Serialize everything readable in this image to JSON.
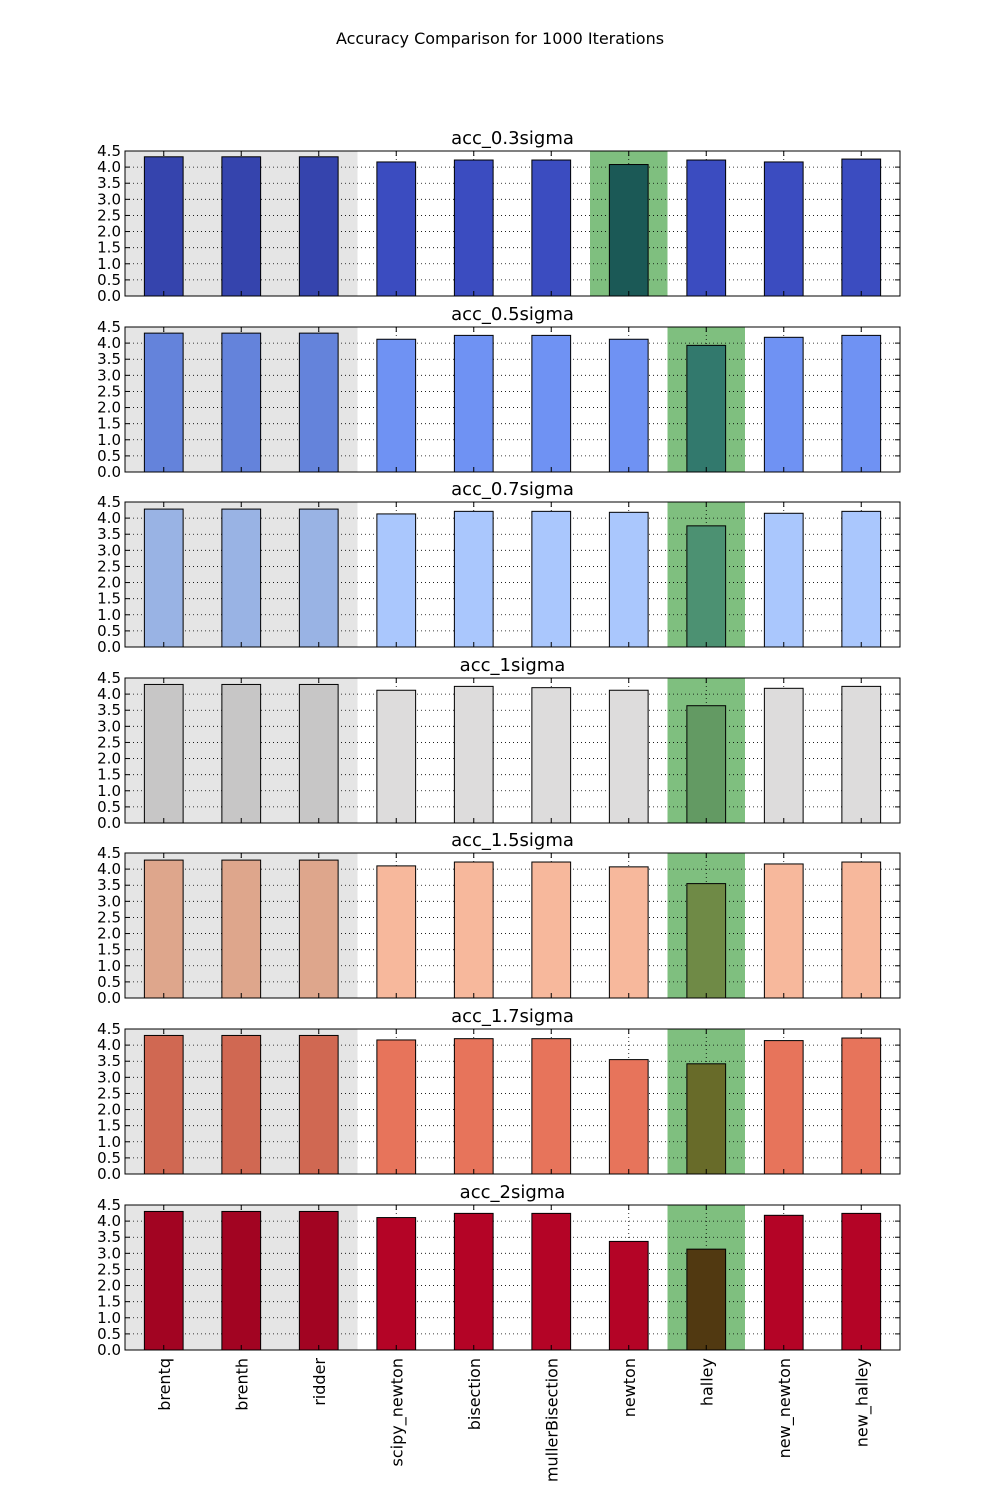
{
  "chart_data": {
    "type": "bar",
    "suptitle": "Accuracy Comparison for 1000 Iterations",
    "categories": [
      "brentq",
      "brenth",
      "ridder",
      "scipy_newton",
      "bisection",
      "mullerBisection",
      "newton",
      "halley",
      "new_newton",
      "new_halley"
    ],
    "ylim": [
      0,
      4.5
    ],
    "yticks": [
      "0.0",
      "0.5",
      "1.0",
      "1.5",
      "2.0",
      "2.5",
      "3.0",
      "3.5",
      "4.0",
      "4.5"
    ],
    "grid": true,
    "shaded_gray_categories": [
      "brentq",
      "brenth",
      "ridder"
    ],
    "gray_shade_color": "#e5e5e5",
    "highlight_color": "#7fbf7f",
    "panels": [
      {
        "title": "acc_0.3sigma",
        "bar_color": "#3b4cc0",
        "highlight_category": "newton",
        "values": [
          4.32,
          4.32,
          4.32,
          4.16,
          4.22,
          4.22,
          4.08,
          4.22,
          4.16,
          4.25
        ]
      },
      {
        "title": "acc_0.5sigma",
        "bar_color": "#6f92f3",
        "highlight_category": "halley",
        "values": [
          4.31,
          4.31,
          4.31,
          4.12,
          4.24,
          4.24,
          4.12,
          3.93,
          4.18,
          4.24
        ]
      },
      {
        "title": "acc_0.7sigma",
        "bar_color": "#aac7fd",
        "highlight_category": "halley",
        "values": [
          4.28,
          4.28,
          4.28,
          4.13,
          4.21,
          4.21,
          4.18,
          3.76,
          4.15,
          4.21
        ]
      },
      {
        "title": "acc_1sigma",
        "bar_color": "#dddcdc",
        "highlight_category": "halley",
        "values": [
          4.3,
          4.3,
          4.3,
          4.12,
          4.24,
          4.2,
          4.12,
          3.64,
          4.18,
          4.24
        ]
      },
      {
        "title": "acc_1.5sigma",
        "bar_color": "#f7b89c",
        "highlight_category": "halley",
        "values": [
          4.28,
          4.28,
          4.28,
          4.1,
          4.22,
          4.22,
          4.07,
          3.55,
          4.16,
          4.22
        ]
      },
      {
        "title": "acc_1.7sigma",
        "bar_color": "#e7745b",
        "highlight_category": "halley",
        "values": [
          4.3,
          4.3,
          4.3,
          4.16,
          4.2,
          4.2,
          3.55,
          3.42,
          4.14,
          4.22
        ]
      },
      {
        "title": "acc_2sigma",
        "bar_color": "#b40426",
        "highlight_category": "halley",
        "values": [
          4.3,
          4.3,
          4.3,
          4.11,
          4.24,
          4.24,
          3.37,
          3.13,
          4.18,
          4.24
        ]
      }
    ]
  }
}
